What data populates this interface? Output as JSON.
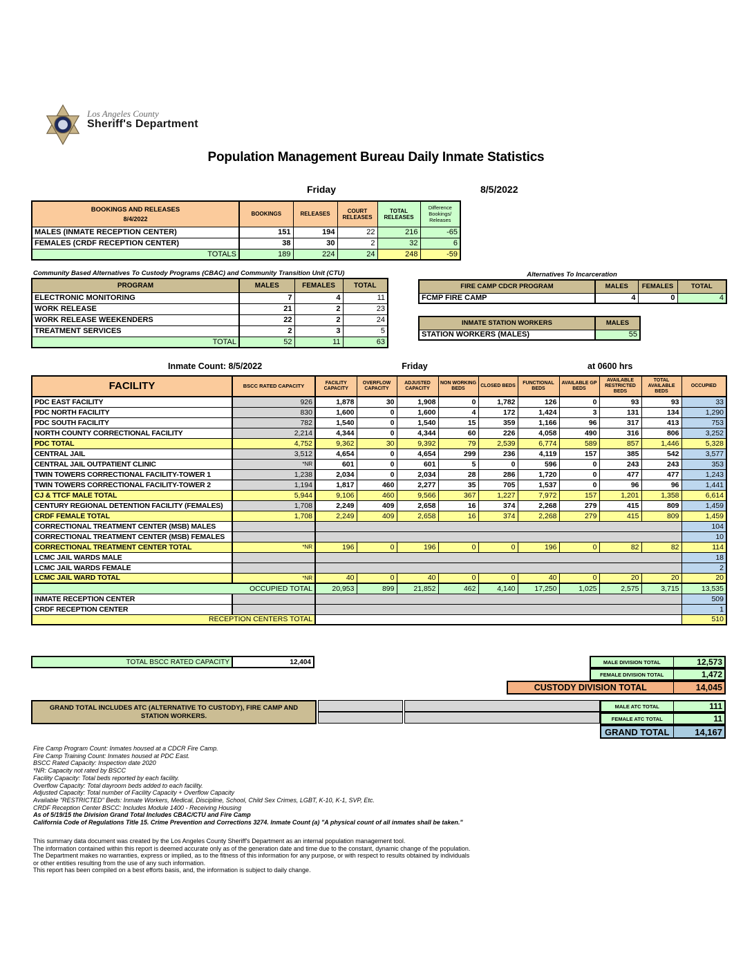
{
  "logo": {
    "county": "Los Angeles County",
    "department": "Sheriff's Department"
  },
  "title": "Population Management Bureau Daily Inmate Statistics",
  "dateline": {
    "day": "Friday",
    "date": "8/5/2022"
  },
  "colors": {
    "orange": "#FBCB9C",
    "tan": "#CBBD94",
    "green": "#CCFFCC",
    "yellow": "#FFFF99",
    "blue": "#BDD7EE",
    "gray": "#D6D6D6",
    "grand_blue": "#A9CCE0",
    "custody_orange": "#F5B183"
  },
  "bookings": {
    "title": "BOOKINGS AND RELEASES",
    "date": "8/4/2022",
    "columns": [
      "BOOKINGS",
      "RELEASES",
      "COURT RELEASES",
      "TOTAL RELEASES",
      "Difference Bookings/ Releases"
    ],
    "rows": [
      {
        "label": "MALES (INMATE RECEPTION CENTER)",
        "values": [
          "151",
          "194",
          "22",
          "216",
          "-65"
        ]
      },
      {
        "label": "FEMALES (CRDF RECEPTION CENTER)",
        "values": [
          "38",
          "30",
          "2",
          "32",
          "6"
        ]
      }
    ],
    "totals": {
      "label": "TOTALS",
      "values": [
        "189",
        "224",
        "24",
        "248",
        "-59"
      ]
    }
  },
  "cbac": {
    "title": "Community Based Alternatives To Custody Programs (CBAC) and Community Transition Unit (CTU)",
    "columns": [
      "PROGRAM",
      "MALES",
      "FEMALES",
      "TOTAL"
    ],
    "rows": [
      {
        "label": "ELECTRONIC MONITORING",
        "values": [
          "7",
          "4",
          "11"
        ]
      },
      {
        "label": "WORK RELEASE",
        "values": [
          "21",
          "2",
          "23"
        ]
      },
      {
        "label": "WORK RELEASE WEEKENDERS",
        "values": [
          "22",
          "2",
          "24"
        ]
      },
      {
        "label": "TREATMENT SERVICES",
        "values": [
          "2",
          "3",
          "5"
        ]
      }
    ],
    "totals": {
      "label": "TOTAL",
      "values": [
        "52",
        "11",
        "63"
      ]
    }
  },
  "ati": {
    "title": "Alternatives To Incarceration",
    "fire_camp": {
      "columns": [
        "FIRE CAMP CDCR PROGRAM",
        "MALES",
        "FEMALES",
        "TOTAL"
      ],
      "row": {
        "label": "FCMP FIRE CAMP",
        "values": [
          "4",
          "0",
          "4"
        ]
      }
    },
    "station_workers": {
      "columns": [
        "INMATE STATION WORKERS",
        "MALES"
      ],
      "row": {
        "label": "STATION WORKERS (MALES)",
        "value": "55"
      }
    }
  },
  "inmate_count_line": {
    "label": "Inmate Count: 8/5/2022",
    "day": "Friday",
    "time": "at 0600 hrs"
  },
  "facility_table": {
    "columns": [
      "FACILITY",
      "BSCC RATED CAPACITY",
      "FACILITY CAPACITY",
      "OVERFLOW CAPACITY",
      "ADJUSTED CAPACITY",
      "NON WORKING BEDS",
      "CLOSED BEDS",
      "FUNCTIONAL BEDS",
      "AVAILABLE GP BEDS",
      "AVAILABLE RESTRICTED BEDS",
      "TOTAL AVAILABLE BEDS",
      "OCCUPIED"
    ],
    "rows": [
      {
        "type": "data",
        "label": "PDC EAST FACILITY",
        "values": [
          "926",
          "1,878",
          "30",
          "1,908",
          "0",
          "1,782",
          "126",
          "0",
          "93",
          "93",
          "33"
        ]
      },
      {
        "type": "data",
        "label": "PDC NORTH FACILITY",
        "values": [
          "830",
          "1,600",
          "0",
          "1,600",
          "4",
          "172",
          "1,424",
          "3",
          "131",
          "134",
          "1,290"
        ]
      },
      {
        "type": "data",
        "label": "PDC SOUTH FACILITY",
        "values": [
          "782",
          "1,540",
          "0",
          "1,540",
          "15",
          "359",
          "1,166",
          "96",
          "317",
          "413",
          "753"
        ]
      },
      {
        "type": "data",
        "label": "NORTH COUNTY CORRECTIONAL FACILITY",
        "values": [
          "2,214",
          "4,344",
          "0",
          "4,344",
          "60",
          "226",
          "4,058",
          "490",
          "316",
          "806",
          "3,252"
        ]
      },
      {
        "type": "total",
        "label": "PDC TOTAL",
        "values": [
          "4,752",
          "9,362",
          "30",
          "9,392",
          "79",
          "2,539",
          "6,774",
          "589",
          "857",
          "1,446",
          "5,328"
        ]
      },
      {
        "type": "data",
        "label": "CENTRAL JAIL",
        "values": [
          "3,512",
          "4,654",
          "0",
          "4,654",
          "299",
          "236",
          "4,119",
          "157",
          "385",
          "542",
          "3,577"
        ]
      },
      {
        "type": "data",
        "label": "CENTRAL JAIL OUTPATIENT CLINIC",
        "values": [
          "*NR",
          "601",
          "0",
          "601",
          "5",
          "0",
          "596",
          "0",
          "243",
          "243",
          "353"
        ]
      },
      {
        "type": "data",
        "label": "TWIN TOWERS CORRECTIONAL FACILITY-TOWER 1",
        "values": [
          "1,238",
          "2,034",
          "0",
          "2,034",
          "28",
          "286",
          "1,720",
          "0",
          "477",
          "477",
          "1,243"
        ]
      },
      {
        "type": "data",
        "label": "TWIN TOWERS CORRECTIONAL FACILITY-TOWER 2",
        "values": [
          "1,194",
          "1,817",
          "460",
          "2,277",
          "35",
          "705",
          "1,537",
          "0",
          "96",
          "96",
          "1,441"
        ]
      },
      {
        "type": "total",
        "label": "CJ & TTCF MALE TOTAL",
        "values": [
          "5,944",
          "9,106",
          "460",
          "9,566",
          "367",
          "1,227",
          "7,972",
          "157",
          "1,201",
          "1,358",
          "6,614"
        ]
      },
      {
        "type": "data",
        "label": "CENTURY REGIONAL DETENTION FACILITY (FEMALES)",
        "values": [
          "1,708",
          "2,249",
          "409",
          "2,658",
          "16",
          "374",
          "2,268",
          "279",
          "415",
          "809",
          "1,459"
        ]
      },
      {
        "type": "total",
        "label": "CRDF FEMALE TOTAL",
        "values": [
          "1,708",
          "2,249",
          "409",
          "2,658",
          "16",
          "374",
          "2,268",
          "279",
          "415",
          "809",
          "1,459"
        ]
      },
      {
        "type": "grayspan",
        "label": "CORRECTIONAL TREATMENT CENTER (MSB) MALES",
        "values": [
          "104"
        ]
      },
      {
        "type": "grayspan",
        "label": "CORRECTIONAL TREATMENT CENTER (MSB) FEMALES",
        "values": [
          "10"
        ]
      },
      {
        "type": "total",
        "label": "CORRECTIONAL TREATMENT CENTER  TOTAL",
        "values": [
          "*NR",
          "196",
          "0",
          "196",
          "0",
          "0",
          "196",
          "0",
          "82",
          "82",
          "114"
        ]
      },
      {
        "type": "grayspan",
        "label": "LCMC JAIL WARDS MALE",
        "values": [
          "18"
        ]
      },
      {
        "type": "grayspan",
        "label": "LCMC JAIL WARDS FEMALE",
        "values": [
          "2"
        ]
      },
      {
        "type": "total",
        "label": "LCMC JAIL WARD TOTAL",
        "values": [
          "*NR",
          "40",
          "0",
          "40",
          "0",
          "0",
          "40",
          "0",
          "20",
          "20",
          "20"
        ]
      },
      {
        "type": "occtotal",
        "label": "OCCUPIED TOTAL",
        "values": [
          "20,953",
          "899",
          "21,852",
          "462",
          "4,140",
          "17,250",
          "1,025",
          "2,575",
          "3,715",
          "13,535"
        ]
      },
      {
        "type": "grayspan",
        "label": "INMATE RECEPTION CENTER",
        "values": [
          "509"
        ]
      },
      {
        "type": "grayspan",
        "label": "CRDF RECEPTION CENTER",
        "values": [
          "1"
        ]
      },
      {
        "type": "rectotal",
        "label": "RECEPTION CENTERS TOTAL",
        "values": [
          "510"
        ]
      }
    ],
    "bscc_total": {
      "label": "TOTAL BSCC RATED CAPACITY",
      "value": "12,404"
    }
  },
  "division_totals": {
    "male": {
      "label": "MALE DIVISION TOTAL",
      "value": "12,573"
    },
    "female": {
      "label": "FEMALE DIVISION TOTAL",
      "value": "1,472"
    },
    "custody": {
      "label": "CUSTODY DIVISION TOTAL",
      "value": "14,045"
    }
  },
  "grand_total_section": {
    "note": "GRAND TOTAL INCLUDES ATC (ALTERNATIVE TO CUSTODY), FIRE CAMP AND STATION WORKERS.",
    "male_atc": {
      "label": "MALE ATC TOTAL",
      "value": "111"
    },
    "female_atc": {
      "label": "FEMALE ATC TOTAL",
      "value": "11"
    },
    "grand": {
      "label": "GRAND TOTAL",
      "value": "14,167"
    }
  },
  "footnotes": [
    "Fire Camp Program Count: Inmates housed at a CDCR Fire Camp.",
    "Fire Camp Training Count: Inmates housed at PDC East.",
    "BSCC Rated Capacity: Inspection date 2020",
    "*NR: Capacity not rated by BSCC",
    "Facility Capacity: Total beds reported by each facility.",
    "Overflow Capacity: Total dayroom beds added to each facility.",
    "Adjusted Capacity: Total number of Facility Capacity + Overflow Capacity",
    "Available \"RESTRICTED\" Beds: Inmate Workers, Medical, Discipline, School, Child Sex Crimes,  LGBT, K-10, K-1, SVP, Etc.",
    "CRDF Reception Center BSCC: Includes Module 1400 - Receiving Housing",
    "As of 5/19/15 the Division Grand Total Includes CBAC/CTU and Fire Camp",
    "California Code of Regulations Title 15. Crime Prevention and Corrections 3274. Inmate Count (a) \"A physical count of all inmates shall be taken.\""
  ],
  "disclaimer": [
    "This summary data document was created by the Los Angeles County Sheriff's Department as an internal population management tool.",
    "The information contained within this report is deemed accurate only as of the generation date and time due to the constant, dynamic change of the population.",
    "The Department makes no warranties, express or implied, as to the fitness of this information for any purpose, or with respect to results obtained by individuals",
    "or other entities resulting  from the use of any such information.",
    "This report has been compiled on a best efforts basis, and, the information is subject to daily change."
  ]
}
